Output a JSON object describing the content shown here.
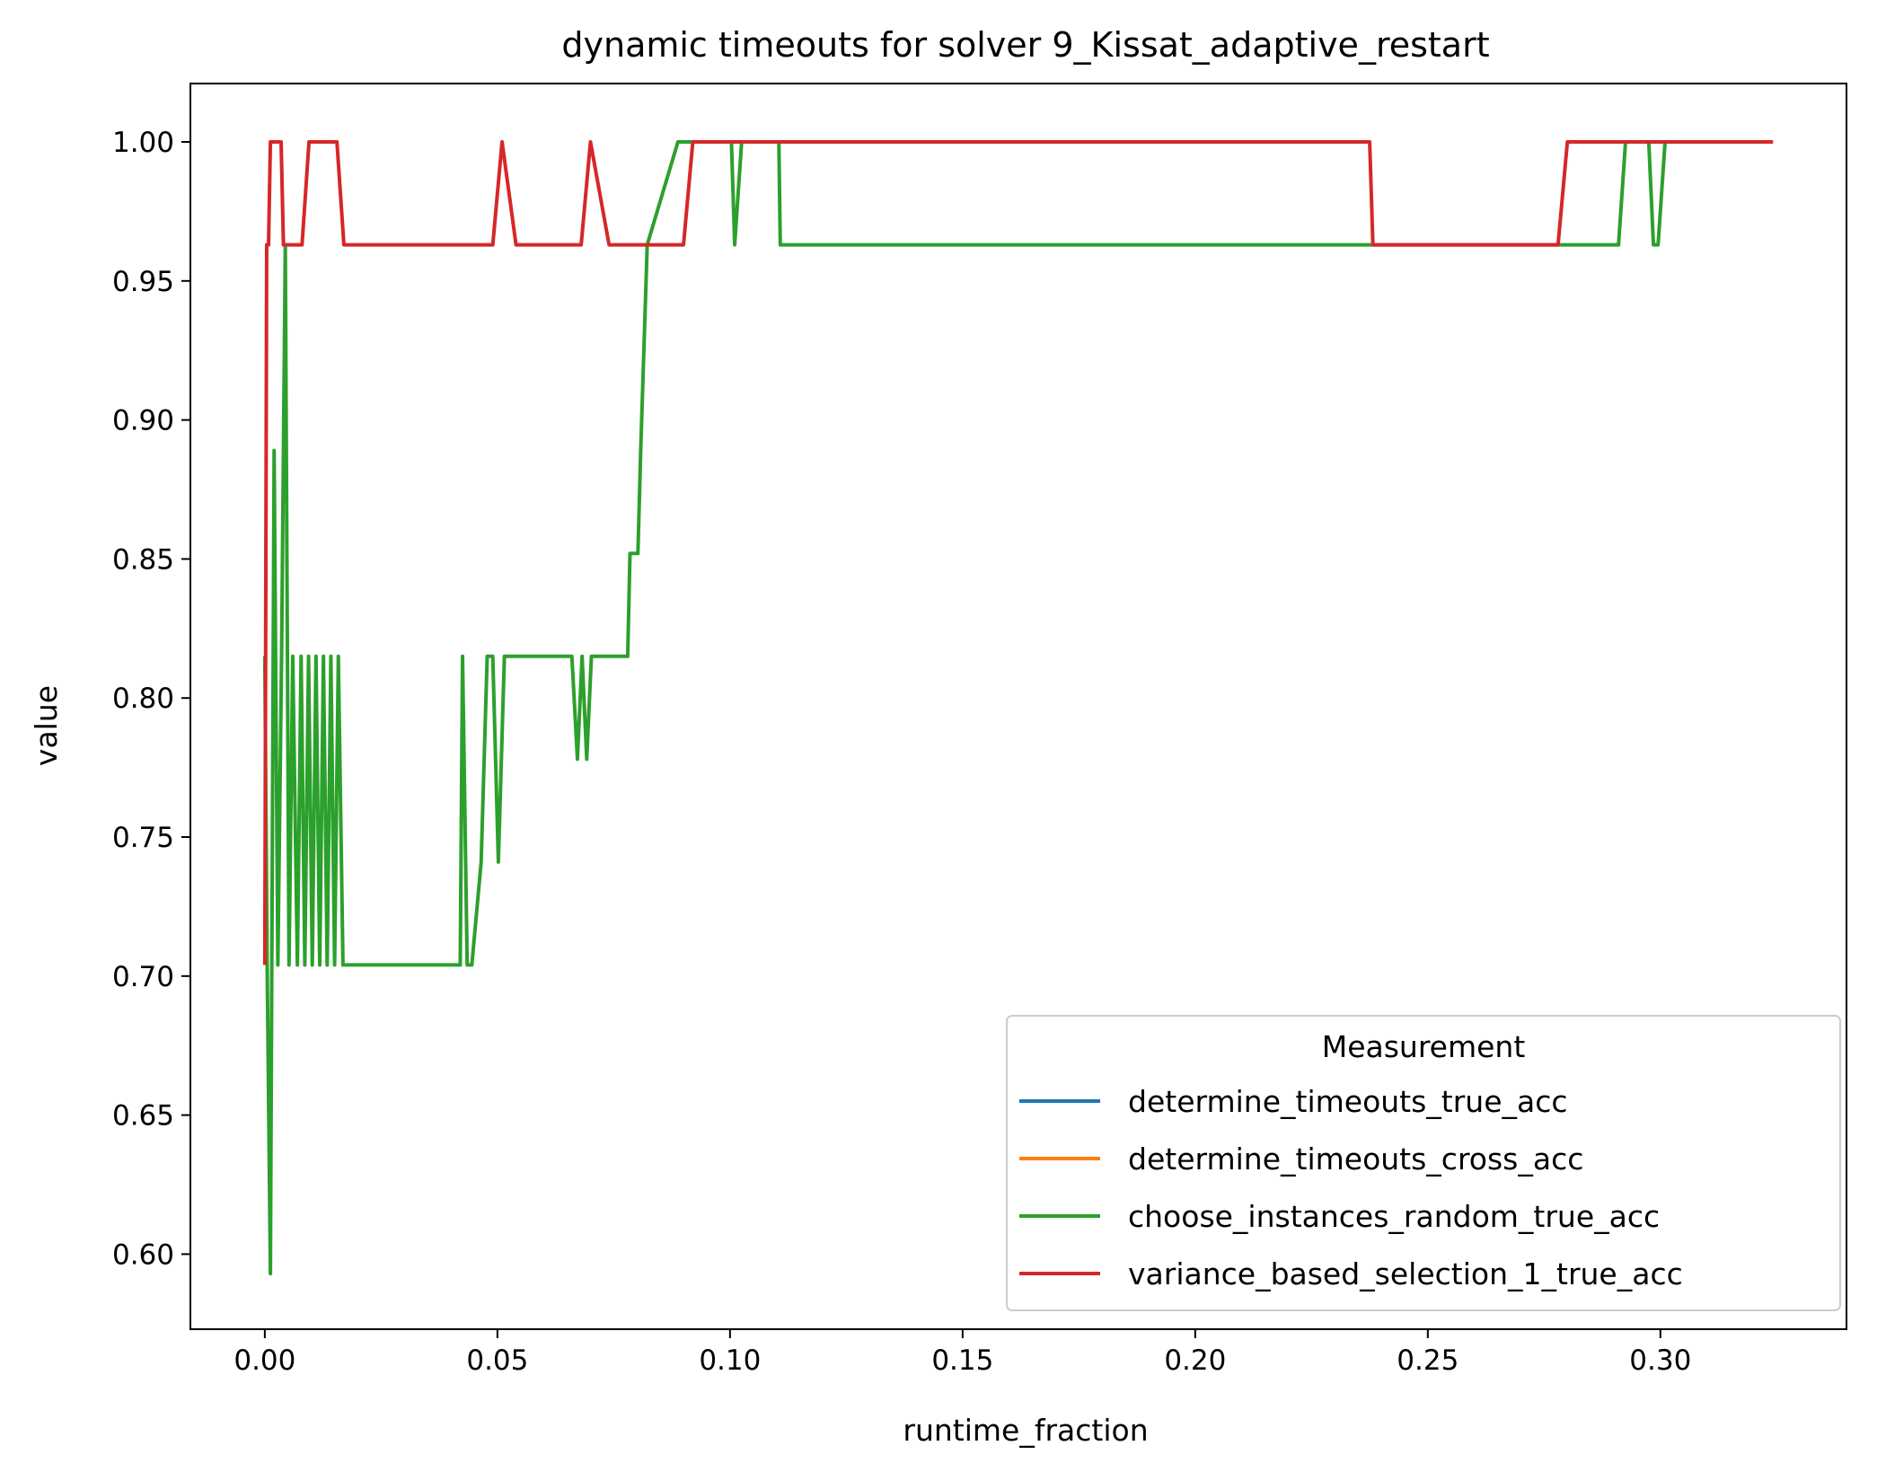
{
  "chart_data": {
    "type": "line",
    "title": "dynamic timeouts for solver 9_Kissat_adaptive_restart",
    "xlabel": "runtime_fraction",
    "ylabel": "value",
    "xlim": [
      -0.016,
      0.34
    ],
    "ylim": [
      0.573,
      1.021
    ],
    "xticks": [
      0.0,
      0.05,
      0.1,
      0.15,
      0.2,
      0.25,
      0.3
    ],
    "xtick_labels": [
      "0.00",
      "0.05",
      "0.10",
      "0.15",
      "0.20",
      "0.25",
      "0.30"
    ],
    "yticks": [
      0.6,
      0.65,
      0.7,
      0.75,
      0.8,
      0.85,
      0.9,
      0.95,
      1.0
    ],
    "ytick_labels": [
      "0.60",
      "0.65",
      "0.70",
      "0.75",
      "0.80",
      "0.85",
      "0.90",
      "0.95",
      "1.00"
    ],
    "grid": false,
    "legend": {
      "title": "Measurement",
      "placement": "lower-right"
    },
    "series": [
      {
        "name": "determine_timeouts_true_acc",
        "color": "#1f77b4",
        "x": [],
        "y": []
      },
      {
        "name": "determine_timeouts_cross_acc",
        "color": "#ff7f0e",
        "x": [],
        "y": []
      },
      {
        "name": "choose_instances_random_true_acc",
        "color": "#2ca02c",
        "x": [
          0.0,
          0.0005,
          0.0012,
          0.002,
          0.0028,
          0.0036,
          0.0044,
          0.0052,
          0.006,
          0.007,
          0.0078,
          0.0086,
          0.0094,
          0.0102,
          0.011,
          0.0118,
          0.0126,
          0.0134,
          0.0142,
          0.015,
          0.0158,
          0.0168,
          0.042,
          0.0425,
          0.0435,
          0.0445,
          0.0465,
          0.0478,
          0.049,
          0.0502,
          0.0515,
          0.066,
          0.0672,
          0.0682,
          0.0692,
          0.0702,
          0.0712,
          0.078,
          0.0785,
          0.0802,
          0.0808,
          0.0822,
          0.0888,
          0.0905,
          0.1003,
          0.101,
          0.1025,
          0.1105,
          0.1108,
          0.291,
          0.2925,
          0.2975,
          0.2985,
          0.2995,
          0.301,
          0.3242
        ],
        "y": [
          0.815,
          0.704,
          0.593,
          0.889,
          0.704,
          0.815,
          0.963,
          0.704,
          0.815,
          0.704,
          0.815,
          0.704,
          0.815,
          0.704,
          0.815,
          0.704,
          0.815,
          0.704,
          0.815,
          0.704,
          0.815,
          0.704,
          0.704,
          0.815,
          0.704,
          0.704,
          0.741,
          0.815,
          0.815,
          0.741,
          0.815,
          0.815,
          0.778,
          0.815,
          0.778,
          0.815,
          0.815,
          0.815,
          0.852,
          0.852,
          0.889,
          0.963,
          1.0,
          1.0,
          1.0,
          0.963,
          1.0,
          1.0,
          0.963,
          0.963,
          1.0,
          1.0,
          0.963,
          0.963,
          1.0,
          1.0
        ]
      },
      {
        "name": "variance_based_selection_1_true_acc",
        "color": "#d62728",
        "x": [
          0.0,
          0.0004,
          0.0008,
          0.0012,
          0.0035,
          0.004,
          0.008,
          0.0095,
          0.0155,
          0.017,
          0.049,
          0.051,
          0.054,
          0.068,
          0.07,
          0.074,
          0.09,
          0.092,
          0.2375,
          0.2382,
          0.278,
          0.28,
          0.3242
        ],
        "y": [
          0.704,
          0.963,
          0.963,
          1.0,
          1.0,
          0.963,
          0.963,
          1.0,
          1.0,
          0.963,
          0.963,
          1.0,
          0.963,
          0.963,
          1.0,
          0.963,
          0.963,
          1.0,
          1.0,
          0.963,
          0.963,
          1.0,
          1.0
        ]
      }
    ]
  }
}
